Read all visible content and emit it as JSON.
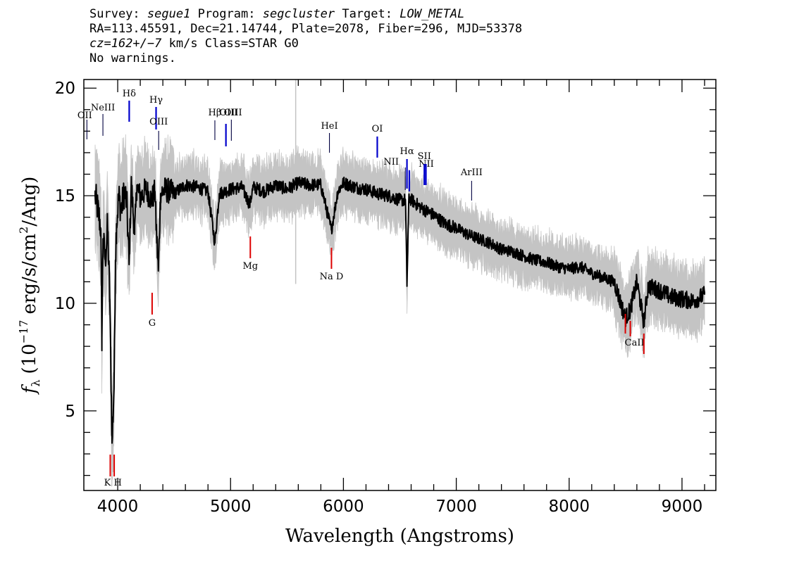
{
  "chart_data": {
    "type": "line",
    "header": {
      "survey_label": "Survey:",
      "survey": "segue1",
      "program_label": "Program:",
      "program": "segcluster",
      "target_label": "Target:",
      "target": "LOW_METAL",
      "line2": "RA=113.45591, Dec=21.14744, Plate=2078, Fiber=296, MJD=53378",
      "redshift": "cz=162+/−7",
      "redshift_units": "km/s Class=STAR G0",
      "warnings": "No warnings."
    },
    "xlabel": "Wavelength (Angstroms)",
    "ylabel_prefix": "f",
    "ylabel_sub": "λ",
    "ylabel_units_a": "(10",
    "ylabel_exp": "−17",
    "ylabel_units_b": "erg/s/cm",
    "ylabel_exp2": "2",
    "ylabel_units_c": "/Ang)",
    "xlim": [
      3700,
      9300
    ],
    "ylim": [
      1.3,
      20.4
    ],
    "xticks": [
      4000,
      5000,
      6000,
      7000,
      8000,
      9000
    ],
    "yticks": [
      5,
      10,
      15,
      20
    ],
    "grid": false,
    "legend": "none",
    "series": [
      {
        "x": [
          3800,
          3830,
          3850,
          3860,
          3870,
          3890,
          3910,
          3930,
          3950,
          3968,
          3980,
          3990,
          4010,
          4030,
          4060,
          4080,
          4101,
          4120,
          4150,
          4170,
          4200,
          4250,
          4300,
          4330,
          4340,
          4360,
          4380,
          4420,
          4500,
          4600,
          4700,
          4800,
          4861,
          4900,
          5000,
          5100,
          5170,
          5200,
          5300,
          5400,
          5500,
          5600,
          5700,
          5800,
          5893,
          5950,
          6000,
          6100,
          6200,
          6300,
          6400,
          6500,
          6550,
          6563,
          6580,
          6650,
          6700,
          6800,
          6900,
          7000,
          7100,
          7200,
          7300,
          7400,
          7500,
          7600,
          7700,
          7800,
          7900,
          8000,
          8100,
          8200,
          8300,
          8400,
          8498,
          8542,
          8600,
          8662,
          8700,
          8800,
          8900,
          9000,
          9100,
          9200
        ],
        "y": [
          15.0,
          14.2,
          13.5,
          8.4,
          13.0,
          12.0,
          13.6,
          10.2,
          3.5,
          6.2,
          12.0,
          13.7,
          15.0,
          14.3,
          15.2,
          14.7,
          11.8,
          15.6,
          13.2,
          15.5,
          14.9,
          15.3,
          14.8,
          15.2,
          13.7,
          11.5,
          15.1,
          15.3,
          15.1,
          15.5,
          15.4,
          15.2,
          12.8,
          15.1,
          15.3,
          15.4,
          14.6,
          15.4,
          15.2,
          15.5,
          15.3,
          15.6,
          15.5,
          15.5,
          13.4,
          15.2,
          15.6,
          15.4,
          15.3,
          15.1,
          15.0,
          14.8,
          14.8,
          10.9,
          14.9,
          14.6,
          14.4,
          14.1,
          13.7,
          13.5,
          13.2,
          13.0,
          12.8,
          12.5,
          12.4,
          12.2,
          12.0,
          11.9,
          11.7,
          11.6,
          11.7,
          11.4,
          11.2,
          11.0,
          9.3,
          9.7,
          11.0,
          9.1,
          10.8,
          10.6,
          10.3,
          10.2,
          10.1,
          10.4
        ]
      }
    ],
    "emission_lines": [
      {
        "label": "OII",
        "x": 3727
      },
      {
        "label": "NeIII",
        "x": 3869
      },
      {
        "label": "Hδ",
        "x": 4102
      },
      {
        "label": "Hγ",
        "x": 4340
      },
      {
        "label": "OIII",
        "x": 4363
      },
      {
        "label": "Hβ",
        "x": 4861
      },
      {
        "label": "OIII",
        "x": 4959
      },
      {
        "label": "OIII",
        "x": 5007
      },
      {
        "label": "HeI",
        "x": 5876
      },
      {
        "label": "OI",
        "x": 6300
      },
      {
        "label": "NII",
        "x": 6548
      },
      {
        "label": "Hα",
        "x": 6563
      },
      {
        "label": "NII",
        "x": 6584
      },
      {
        "label": "SII",
        "x": 6717
      },
      {
        "label": "SII",
        "x": 6731
      },
      {
        "label": "ArIII",
        "x": 7136
      }
    ],
    "absorption_lines": [
      {
        "label": "K",
        "x": 3934
      },
      {
        "label": "H",
        "x": 3969
      },
      {
        "label": "G",
        "x": 4305
      },
      {
        "label": "Mg",
        "x": 5175
      },
      {
        "label": "Na D",
        "x": 5894
      },
      {
        "label": "CaII",
        "x": 8498
      },
      {
        "label": "CaII",
        "x": 8542
      },
      {
        "label": "CaII",
        "x": 8662
      }
    ],
    "colors": {
      "flux": "#000000",
      "error_band": "#c4c4c4",
      "emission": "#0000cc",
      "emission_thin": "#000040",
      "absorption": "#dd0000"
    }
  }
}
